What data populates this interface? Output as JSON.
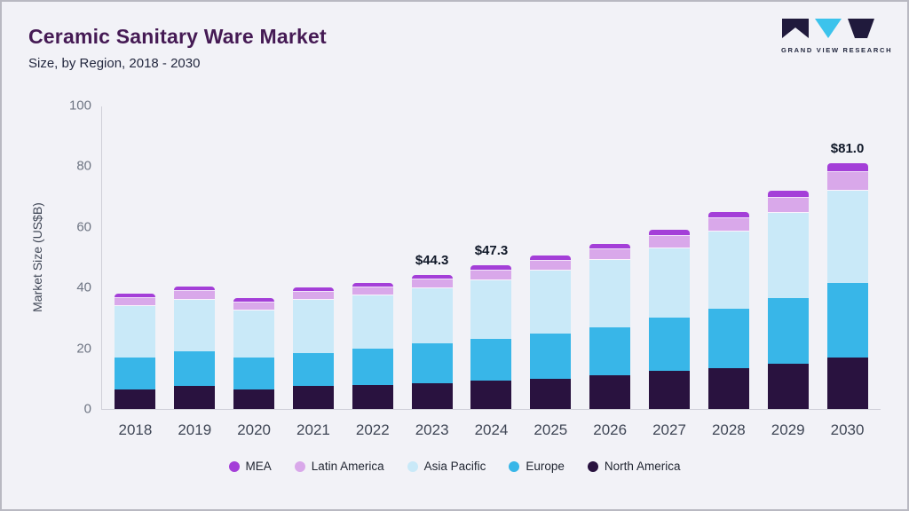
{
  "header": {
    "title": "Ceramic Sanitary Ware Market",
    "subtitle": "Size, by Region, 2018 - 2030",
    "logo_text": "GRAND VIEW RESEARCH"
  },
  "chart_data": {
    "type": "bar",
    "stacked": true,
    "title": "Ceramic Sanitary Ware Market Size, by Region, 2018 - 2030",
    "xlabel": "",
    "ylabel": "Market Size (US$B)",
    "ylim": [
      0,
      100
    ],
    "yticks": [
      0,
      20,
      40,
      60,
      80,
      100
    ],
    "grid": false,
    "legend_position": "bottom",
    "categories": [
      "2018",
      "2019",
      "2020",
      "2021",
      "2022",
      "2023",
      "2024",
      "2025",
      "2026",
      "2027",
      "2028",
      "2029",
      "2030"
    ],
    "series": [
      {
        "name": "North America",
        "color": "#29123f",
        "values": [
          6.5,
          7.5,
          6.5,
          7.5,
          8.0,
          8.5,
          9.5,
          10.0,
          11.0,
          12.5,
          13.5,
          15.0,
          17.0
        ]
      },
      {
        "name": "Europe",
        "color": "#38b6e8",
        "values": [
          10.5,
          11.5,
          10.5,
          11.0,
          12.0,
          13.0,
          13.5,
          15.0,
          16.0,
          17.5,
          19.5,
          21.5,
          24.5
        ]
      },
      {
        "name": "Asia Pacific",
        "color": "#c9e9f8",
        "values": [
          17.0,
          17.0,
          15.5,
          17.5,
          17.5,
          18.3,
          19.5,
          20.5,
          22.0,
          23.0,
          25.5,
          28.0,
          30.5
        ]
      },
      {
        "name": "Latin America",
        "color": "#d9a8ea",
        "values": [
          2.5,
          3.0,
          2.5,
          2.5,
          2.5,
          2.8,
          3.0,
          3.2,
          3.5,
          4.0,
          4.3,
          5.0,
          6.0
        ]
      },
      {
        "name": "MEA",
        "color": "#a43fd8",
        "values": [
          1.5,
          1.5,
          1.5,
          1.5,
          1.5,
          1.7,
          1.8,
          1.8,
          2.0,
          2.0,
          2.2,
          2.5,
          3.0
        ]
      }
    ],
    "bar_labels": {
      "2023": "$44.3",
      "2024": "$47.3",
      "2030": "$81.0"
    },
    "legend": [
      "MEA",
      "Latin America",
      "Asia Pacific",
      "Europe",
      "North America"
    ]
  },
  "colors": {
    "background": "#f2f2f7",
    "title": "#451a54",
    "subtitle": "#23283f",
    "axis_text": "#6d7482",
    "logo_cyan": "#3cc3ec",
    "logo_dark": "#201a3c"
  }
}
